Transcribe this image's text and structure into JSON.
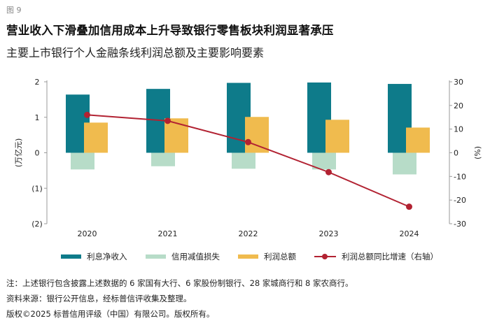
{
  "figure_label": "图 9",
  "title": "营业收入下滑叠加信用成本上升导致银行零售板块利润显著承压",
  "subtitle": "主要上市银行个人金融条线利润总额及主要影响要素",
  "chart_data": {
    "type": "bar",
    "categories": [
      "2020",
      "2021",
      "2022",
      "2023",
      "2024"
    ],
    "series": [
      {
        "name": "利息净收入",
        "type": "bar",
        "axis": "left",
        "color": "#0e7b8a",
        "values": [
          1.64,
          1.8,
          1.97,
          1.98,
          1.94
        ]
      },
      {
        "name": "信用减值损失",
        "type": "bar",
        "axis": "left",
        "color": "#b7dcc8",
        "values": [
          -0.47,
          -0.38,
          -0.45,
          -0.47,
          -0.61
        ]
      },
      {
        "name": "利润总额",
        "type": "bar",
        "axis": "left",
        "color": "#f0bb4e",
        "values": [
          0.85,
          0.97,
          1.01,
          0.93,
          0.71
        ]
      },
      {
        "name": "利润总额同比增速（右轴）",
        "type": "line",
        "axis": "right",
        "color": "#b22232",
        "values": [
          16,
          13.5,
          4.5,
          -8.2,
          -22.8
        ]
      }
    ],
    "left_axis": {
      "label": "(万亿元)",
      "ylim": [
        -2,
        2
      ],
      "ticks": [
        2,
        1,
        0,
        -1,
        -2
      ],
      "tick_labels": [
        "2",
        "1",
        "0",
        "(1)",
        "(2)"
      ]
    },
    "right_axis": {
      "label": "(%)",
      "ylim": [
        -30,
        30
      ],
      "ticks": [
        30,
        20,
        10,
        0,
        -10,
        -20,
        -30
      ],
      "tick_labels": [
        "30",
        "20",
        "10",
        "0",
        "-10",
        "-20",
        "-30"
      ]
    },
    "grid": false,
    "legend_position": "bottom"
  },
  "notes": {
    "note": "注：上述银行包含披露上述数据的 6 家国有大行、6 家股份制银行、28 家城商行和 8 家农商行。",
    "source": "资料来源：银行公开信息，经标普信评收集及整理。",
    "copyright": "版权©2025 标普信用评级（中国）有限公司。版权所有。"
  }
}
